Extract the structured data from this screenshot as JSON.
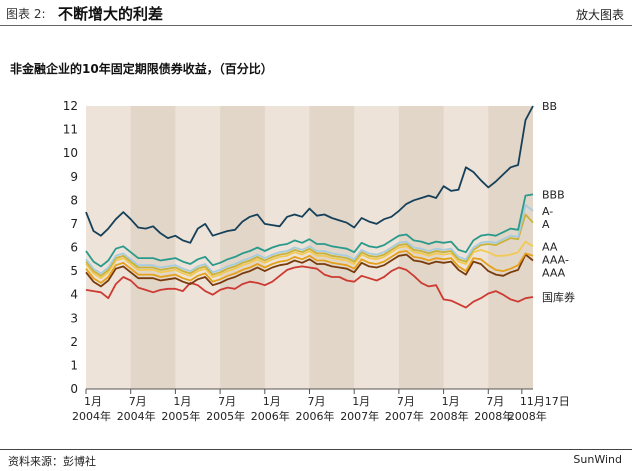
{
  "header": {
    "figure_label": "图表 2:",
    "title": "不断增大的利差",
    "enlarge_label": "放大图表"
  },
  "footer": {
    "source": "资料来源：彭博社",
    "brand": "SunWind"
  },
  "chart_data": {
    "type": "line",
    "title": "非金融企业的10年固定期限债券收益，（百分比）",
    "xlabel": "",
    "ylabel": "",
    "ylim": [
      0,
      12
    ],
    "yticks": [
      0,
      1,
      2,
      3,
      4,
      5,
      6,
      7,
      8,
      9,
      10,
      11,
      12
    ],
    "grid": false,
    "alternating_bands": true,
    "x_ticks": [
      {
        "m": 0,
        "top": "1月",
        "bottom": "2004年"
      },
      {
        "m": 6,
        "top": "7月",
        "bottom": "2004年"
      },
      {
        "m": 12,
        "top": "1月",
        "bottom": "2005年"
      },
      {
        "m": 18,
        "top": "7月",
        "bottom": "2005年"
      },
      {
        "m": 24,
        "top": "1月",
        "bottom": "2006年"
      },
      {
        "m": 30,
        "top": "7月",
        "bottom": "2006年"
      },
      {
        "m": 36,
        "top": "1月",
        "bottom": "2007年"
      },
      {
        "m": 42,
        "top": "7月",
        "bottom": "2007年"
      },
      {
        "m": 48,
        "top": "1月",
        "bottom": "2008年"
      },
      {
        "m": 54,
        "top": "7月",
        "bottom": "2008年"
      },
      {
        "m": 58.5,
        "top": "11月17日",
        "bottom": "2008年"
      }
    ],
    "series": [
      {
        "name": "BB",
        "color": "#16405a",
        "values": [
          7.5,
          6.7,
          6.5,
          6.8,
          7.2,
          7.5,
          7.2,
          6.85,
          6.8,
          6.9,
          6.6,
          6.4,
          6.5,
          6.3,
          6.2,
          6.8,
          7.0,
          6.5,
          6.6,
          6.7,
          6.75,
          7.1,
          7.3,
          7.4,
          7.0,
          6.95,
          6.9,
          7.3,
          7.4,
          7.3,
          7.65,
          7.35,
          7.4,
          7.25,
          7.15,
          7.05,
          6.85,
          7.25,
          7.1,
          7.0,
          7.2,
          7.3,
          7.55,
          7.85,
          8.0,
          8.1,
          8.2,
          8.1,
          8.6,
          8.4,
          8.45,
          9.4,
          9.2,
          8.85,
          8.55,
          8.8,
          9.1,
          9.4,
          9.5,
          11.4,
          12.0
        ]
      },
      {
        "name": "BBB",
        "color": "#2a9a8c",
        "values": [
          5.85,
          5.4,
          5.2,
          5.45,
          5.95,
          6.05,
          5.8,
          5.55,
          5.55,
          5.55,
          5.45,
          5.5,
          5.55,
          5.4,
          5.3,
          5.5,
          5.6,
          5.25,
          5.35,
          5.5,
          5.6,
          5.75,
          5.85,
          6.0,
          5.85,
          6.0,
          6.1,
          6.15,
          6.3,
          6.2,
          6.35,
          6.15,
          6.15,
          6.05,
          6.0,
          5.95,
          5.8,
          6.2,
          6.05,
          6.0,
          6.1,
          6.3,
          6.5,
          6.55,
          6.3,
          6.25,
          6.15,
          6.25,
          6.2,
          6.25,
          5.9,
          5.8,
          6.3,
          6.5,
          6.55,
          6.5,
          6.65,
          6.8,
          6.75,
          8.2,
          8.25
        ]
      },
      {
        "name": "A-",
        "color": "#a6cce0",
        "values": [
          5.5,
          5.1,
          4.9,
          5.15,
          5.65,
          5.75,
          5.5,
          5.25,
          5.25,
          5.25,
          5.15,
          5.2,
          5.25,
          5.1,
          5.0,
          5.2,
          5.3,
          4.95,
          5.05,
          5.2,
          5.3,
          5.45,
          5.55,
          5.7,
          5.55,
          5.7,
          5.8,
          5.85,
          6.0,
          5.9,
          6.05,
          5.85,
          5.85,
          5.75,
          5.7,
          5.65,
          5.5,
          5.9,
          5.75,
          5.7,
          5.8,
          6.0,
          6.2,
          6.25,
          6.0,
          5.95,
          5.85,
          5.95,
          5.9,
          5.95,
          5.6,
          5.5,
          6.0,
          6.2,
          6.25,
          6.2,
          6.35,
          6.5,
          6.45,
          7.8,
          7.55
        ]
      },
      {
        "name": "A",
        "color": "#c9b23a",
        "values": [
          5.4,
          5.0,
          4.8,
          5.05,
          5.55,
          5.65,
          5.4,
          5.15,
          5.15,
          5.15,
          5.05,
          5.1,
          5.15,
          5.0,
          4.9,
          5.1,
          5.2,
          4.85,
          4.95,
          5.1,
          5.2,
          5.35,
          5.45,
          5.6,
          5.45,
          5.6,
          5.7,
          5.75,
          5.9,
          5.8,
          5.95,
          5.75,
          5.75,
          5.65,
          5.6,
          5.55,
          5.4,
          5.8,
          5.65,
          5.6,
          5.7,
          5.9,
          6.1,
          6.15,
          5.9,
          5.85,
          5.75,
          5.85,
          5.8,
          5.85,
          5.5,
          5.4,
          5.9,
          6.1,
          6.15,
          6.1,
          6.25,
          6.4,
          6.35,
          7.4,
          7.05
        ]
      },
      {
        "name": "AA",
        "color": "#f2c955",
        "values": [
          5.3,
          4.9,
          4.7,
          4.95,
          5.45,
          5.55,
          5.3,
          5.05,
          5.05,
          5.05,
          4.95,
          5.0,
          5.05,
          4.9,
          4.8,
          5.0,
          5.1,
          4.75,
          4.85,
          5.0,
          5.1,
          5.25,
          5.35,
          5.5,
          5.35,
          5.5,
          5.6,
          5.65,
          5.8,
          5.7,
          5.85,
          5.65,
          5.65,
          5.55,
          5.5,
          5.45,
          5.3,
          5.7,
          5.55,
          5.5,
          5.6,
          5.8,
          6.0,
          6.05,
          5.8,
          5.75,
          5.65,
          5.75,
          5.7,
          5.75,
          5.4,
          5.3,
          5.8,
          5.9,
          5.8,
          5.65,
          5.65,
          5.7,
          5.8,
          6.25,
          6.05
        ]
      },
      {
        "name": "AAA-",
        "color": "#e5a11b",
        "values": [
          5.1,
          4.7,
          4.5,
          4.75,
          5.25,
          5.35,
          5.1,
          4.85,
          4.85,
          4.85,
          4.75,
          4.8,
          4.85,
          4.7,
          4.6,
          4.8,
          4.9,
          4.55,
          4.65,
          4.8,
          4.9,
          5.05,
          5.15,
          5.3,
          5.15,
          5.3,
          5.4,
          5.45,
          5.6,
          5.5,
          5.65,
          5.45,
          5.45,
          5.35,
          5.3,
          5.25,
          5.1,
          5.5,
          5.35,
          5.3,
          5.4,
          5.6,
          5.8,
          5.85,
          5.6,
          5.55,
          5.45,
          5.55,
          5.5,
          5.55,
          5.2,
          5.0,
          5.55,
          5.5,
          5.25,
          5.05,
          5.0,
          5.1,
          5.25,
          5.75,
          5.65
        ]
      },
      {
        "name": "AAA",
        "color": "#7a3b0c",
        "values": [
          4.95,
          4.55,
          4.35,
          4.6,
          5.1,
          5.2,
          4.95,
          4.7,
          4.7,
          4.7,
          4.6,
          4.65,
          4.7,
          4.55,
          4.45,
          4.65,
          4.75,
          4.4,
          4.5,
          4.65,
          4.75,
          4.9,
          5.0,
          5.15,
          5.0,
          5.15,
          5.25,
          5.3,
          5.45,
          5.35,
          5.5,
          5.3,
          5.3,
          5.2,
          5.15,
          5.1,
          4.95,
          5.35,
          5.2,
          5.15,
          5.25,
          5.45,
          5.65,
          5.7,
          5.45,
          5.4,
          5.3,
          5.4,
          5.35,
          5.4,
          5.05,
          4.85,
          5.4,
          5.3,
          5.0,
          4.85,
          4.8,
          4.95,
          5.05,
          5.7,
          5.45
        ]
      },
      {
        "name": "国库券",
        "color": "#cc3a32",
        "values": [
          4.2,
          4.15,
          4.1,
          3.85,
          4.45,
          4.75,
          4.6,
          4.3,
          4.2,
          4.1,
          4.2,
          4.25,
          4.25,
          4.15,
          4.5,
          4.4,
          4.15,
          4.0,
          4.2,
          4.3,
          4.25,
          4.45,
          4.55,
          4.5,
          4.4,
          4.55,
          4.8,
          5.05,
          5.15,
          5.2,
          5.15,
          5.1,
          4.85,
          4.75,
          4.75,
          4.6,
          4.55,
          4.8,
          4.7,
          4.6,
          4.75,
          5.0,
          5.15,
          5.05,
          4.8,
          4.5,
          4.35,
          4.4,
          3.8,
          3.75,
          3.6,
          3.45,
          3.7,
          3.85,
          4.05,
          4.15,
          4.0,
          3.8,
          3.7,
          3.85,
          3.9
        ]
      }
    ]
  }
}
